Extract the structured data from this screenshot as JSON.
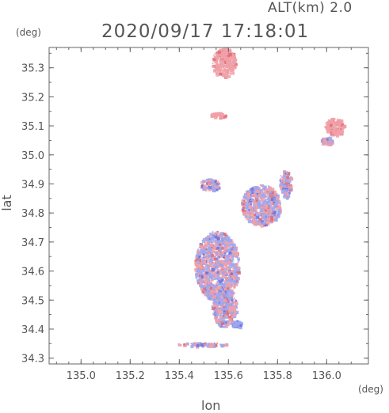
{
  "header": {
    "altitude": "ALT(km) 2.0",
    "timestamp": "2020/09/17 17:18:01"
  },
  "axes": {
    "x_unit": "(deg)",
    "y_unit": "(deg)",
    "x_label": "lon",
    "y_label": "lat"
  },
  "chart_data": {
    "type": "heatmap",
    "xlim": [
      134.87,
      136.17
    ],
    "ylim": [
      34.28,
      35.37
    ],
    "x_ticks": [
      "135.0",
      "135.2",
      "135.4",
      "135.6",
      "135.8",
      "136.0"
    ],
    "y_ticks": [
      "34.3",
      "34.4",
      "34.5",
      "34.6",
      "34.7",
      "34.8",
      "34.9",
      "35.0",
      "35.1",
      "35.2",
      "35.3"
    ],
    "colors": {
      "positive": "#f0a0a8",
      "negative": "#9ca8f0",
      "strong_positive": "#e06a72",
      "strong_negative": "#6a72e0"
    },
    "regions": [
      {
        "lon": 135.58,
        "lat": 35.32,
        "rx": 0.05,
        "ry": 0.05,
        "sign": "positive"
      },
      {
        "lon": 135.555,
        "lat": 35.14,
        "rx": 0.03,
        "ry": 0.008,
        "sign": "positive"
      },
      {
        "lon": 136.03,
        "lat": 35.1,
        "rx": 0.04,
        "ry": 0.03,
        "sign": "positive"
      },
      {
        "lon": 136.0,
        "lat": 35.05,
        "rx": 0.025,
        "ry": 0.015,
        "sign": "mixed"
      },
      {
        "lon": 135.55,
        "lat": 34.62,
        "rx": 0.09,
        "ry": 0.12,
        "sign": "mixed"
      },
      {
        "lon": 135.58,
        "lat": 34.48,
        "rx": 0.05,
        "ry": 0.07,
        "sign": "mixed"
      },
      {
        "lon": 135.73,
        "lat": 34.83,
        "rx": 0.08,
        "ry": 0.07,
        "sign": "mixed"
      },
      {
        "lon": 135.83,
        "lat": 34.9,
        "rx": 0.025,
        "ry": 0.05,
        "sign": "mixed"
      },
      {
        "lon": 135.52,
        "lat": 34.9,
        "rx": 0.04,
        "ry": 0.02,
        "sign": "mixed"
      },
      {
        "lon": 135.63,
        "lat": 34.42,
        "rx": 0.02,
        "ry": 0.012,
        "sign": "negative"
      },
      {
        "lon": 135.49,
        "lat": 34.35,
        "rx": 0.1,
        "ry": 0.006,
        "sign": "mixed"
      }
    ]
  }
}
